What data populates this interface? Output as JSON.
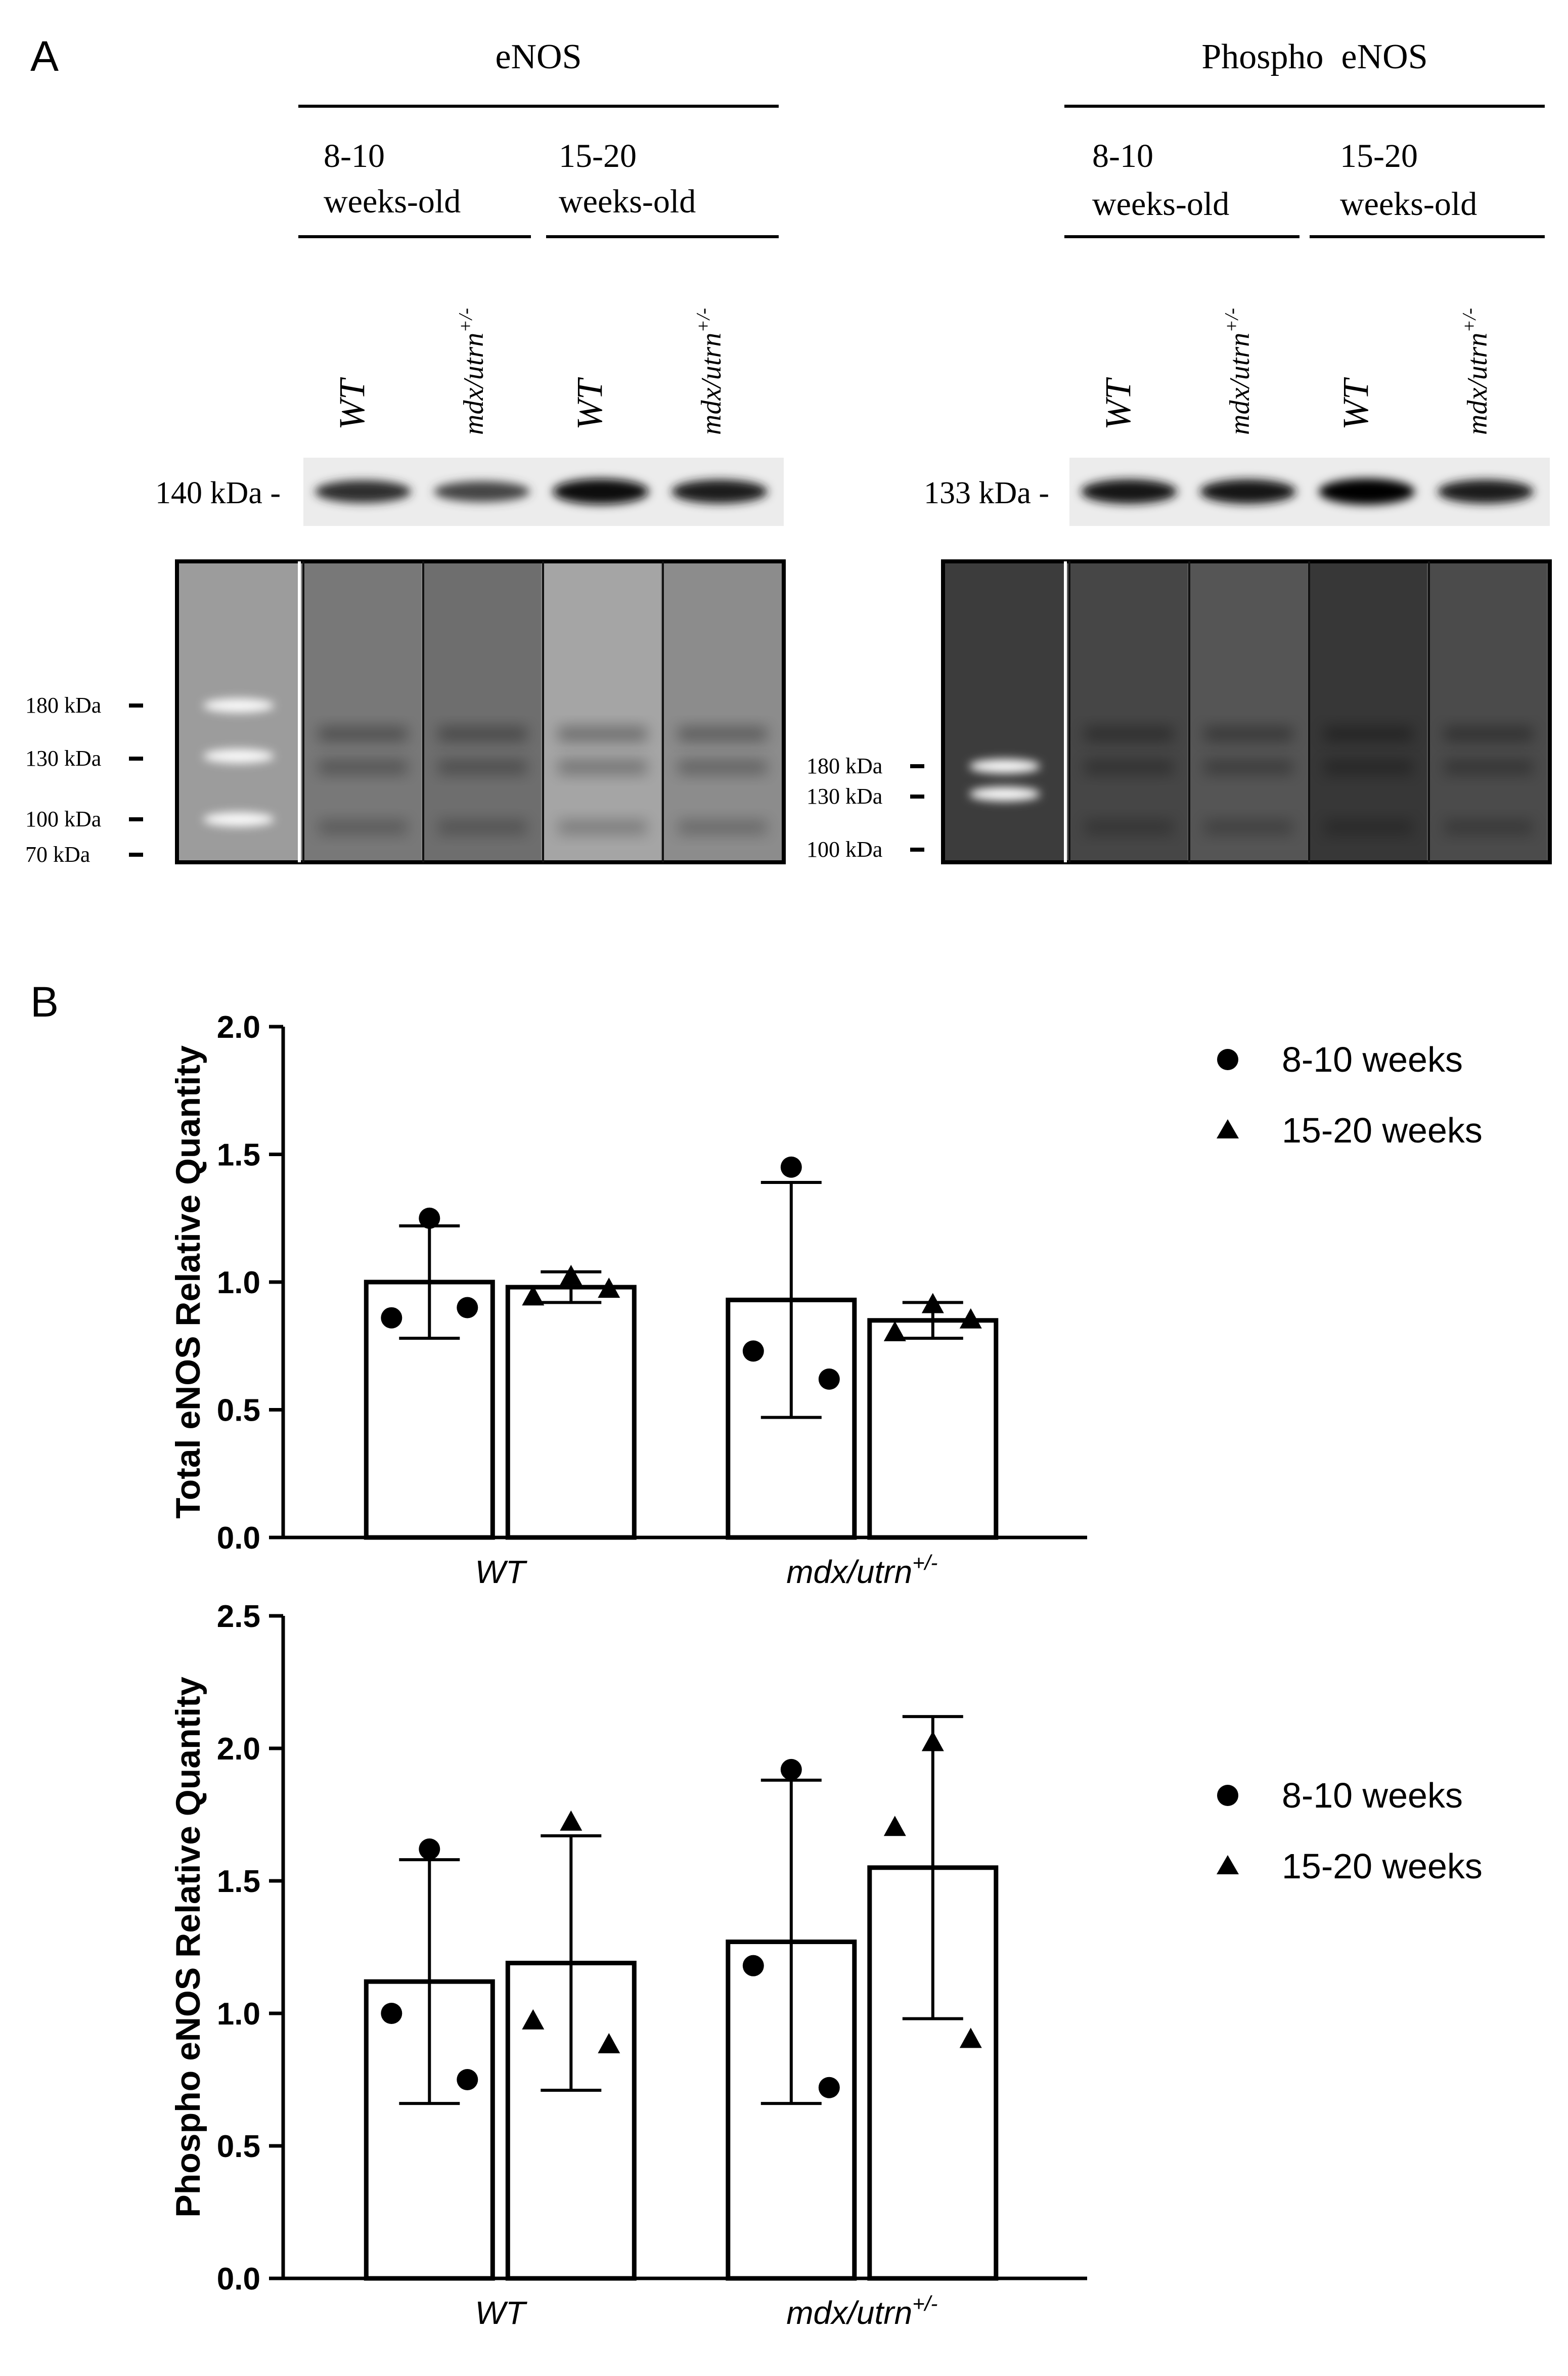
{
  "panel_a": {
    "label": "A",
    "enos": {
      "title": "eNOS",
      "group1": [
        "8-10",
        "weeks-old"
      ],
      "group2": [
        "15-20",
        "weeks-old"
      ],
      "lanes": [
        "WT",
        "mdx/utrn",
        "WT",
        "mdx/utrn"
      ],
      "lane_sup": "+/-",
      "band_marker": "140 kDa -",
      "band_intensity": [
        0.7,
        0.55,
        0.95,
        0.8
      ],
      "ladder": [
        "180 kDa",
        "130 kDa",
        "100 kDa",
        "70 kDa"
      ]
    },
    "phospho": {
      "title": "Phospho  eNOS",
      "group1": [
        "8-10",
        "weeks-old"
      ],
      "group2": [
        "15-20",
        "weeks-old"
      ],
      "lanes": [
        "WT",
        "mdx/utrn",
        "WT",
        "mdx/utrn"
      ],
      "lane_sup": "+/-",
      "band_marker": "133 kDa -",
      "band_intensity": [
        0.85,
        0.85,
        1.0,
        0.8
      ],
      "ladder": [
        "180 kDa",
        "130 kDa",
        "100 kDa"
      ]
    }
  },
  "panel_b": {
    "label": "B",
    "legend": {
      "circle": "8-10 weeks",
      "triangle": "15-20 weeks"
    }
  },
  "chart_data": [
    {
      "type": "bar",
      "ylabel": "Total eNOS Relative Quantity",
      "ylim": [
        0,
        2.0
      ],
      "yticks": [
        "0.0",
        "0.5",
        "1.0",
        "1.5",
        "2.0"
      ],
      "categories": [
        "WT",
        "mdx/utrn"
      ],
      "category_sup": [
        "",
        "+/-"
      ],
      "legend_position": "top-right",
      "series": [
        {
          "name": "8-10 weeks",
          "marker": "circle",
          "values": [
            1.0,
            0.93
          ],
          "sd": [
            0.22,
            0.46
          ],
          "points": [
            [
              1.25,
              0.86,
              0.9
            ],
            [
              1.45,
              0.73,
              0.62
            ]
          ]
        },
        {
          "name": "15-20 weeks",
          "marker": "triangle",
          "values": [
            0.98,
            0.85
          ],
          "sd": [
            0.06,
            0.07
          ],
          "points": [
            [
              1.02,
              0.94,
              0.97
            ],
            [
              0.91,
              0.8,
              0.85
            ]
          ]
        }
      ]
    },
    {
      "type": "bar",
      "ylabel": "Phospho eNOS Relative Quantity",
      "ylim": [
        0,
        2.5
      ],
      "yticks": [
        "0.0",
        "0.5",
        "1.0",
        "1.5",
        "2.0",
        "2.5"
      ],
      "categories": [
        "WT",
        "mdx/utrn"
      ],
      "category_sup": [
        "",
        "+/-"
      ],
      "legend_position": "top-right",
      "series": [
        {
          "name": "8-10 weeks",
          "marker": "circle",
          "values": [
            1.12,
            1.27
          ],
          "sd": [
            0.46,
            0.61
          ],
          "points": [
            [
              1.62,
              1.0,
              0.75
            ],
            [
              1.92,
              1.18,
              0.72
            ]
          ]
        },
        {
          "name": "15-20 weeks",
          "marker": "triangle",
          "values": [
            1.19,
            1.55
          ],
          "sd": [
            0.48,
            0.57
          ],
          "points": [
            [
              1.72,
              0.97,
              0.88
            ],
            [
              2.02,
              1.7,
              0.9
            ]
          ]
        }
      ]
    }
  ]
}
